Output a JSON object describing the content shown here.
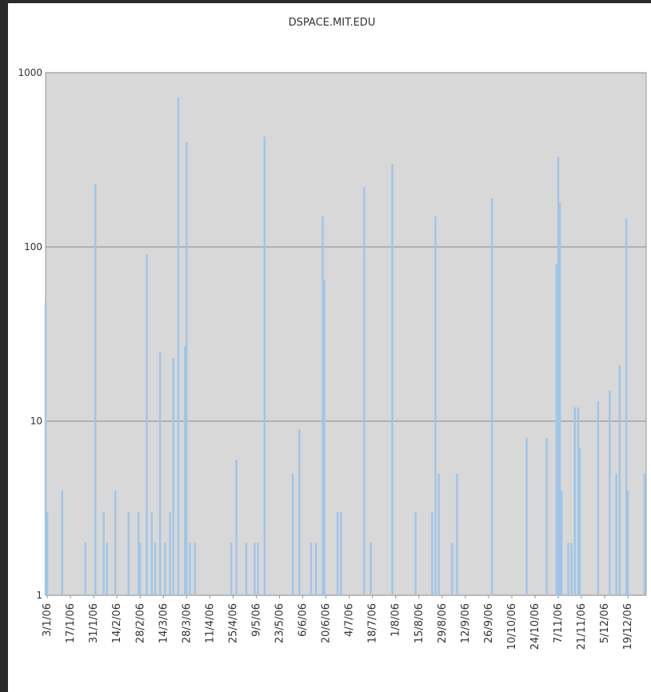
{
  "chart_data": {
    "type": "bar",
    "title": "DSPACE.MIT.EDU",
    "log": true,
    "grid": true,
    "color": "#9fc5e8",
    "xlim": [
      "2/1/06",
      "30/12/06"
    ],
    "xticks": [
      "3/1/06",
      "17/1/06",
      "31/1/06",
      "14/2/06",
      "28/2/06",
      "14/3/06",
      "28/3/06",
      "11/4/06",
      "25/4/06",
      "9/5/06",
      "23/5/06",
      "6/6/06",
      "20/6/06",
      "4/7/06",
      "18/7/06",
      "1/8/06",
      "15/8/06",
      "29/8/06",
      "12/9/06",
      "26/9/06",
      "10/10/06",
      "24/10/06",
      "7/11/06",
      "21/11/06",
      "5/12/06",
      "19/12/06"
    ],
    "ylim": [
      1,
      1000
    ],
    "yticks": [
      1,
      10,
      100,
      1000
    ],
    "x": [
      "2/1/06",
      "3/1/06",
      "12/1/06",
      "26/1/06",
      "1/2/06",
      "6/2/06",
      "8/2/06",
      "13/2/06",
      "21/2/06",
      "27/2/06",
      "28/2/06",
      "4/3/06",
      "7/3/06",
      "9/3/06",
      "12/3/06",
      "15/3/06",
      "18/3/06",
      "20/3/06",
      "23/3/06",
      "27/3/06",
      "28/3/06",
      "30/3/06",
      "2/4/06",
      "24/4/06",
      "27/4/06",
      "3/5/06",
      "8/5/06",
      "10/5/06",
      "14/5/06",
      "31/5/06",
      "4/6/06",
      "11/6/06",
      "14/6/06",
      "18/6/06",
      "19/6/06",
      "27/6/06",
      "29/6/06",
      "13/7/06",
      "17/7/06",
      "30/7/06",
      "13/8/06",
      "23/8/06",
      "25/8/06",
      "27/8/06",
      "4/9/06",
      "7/9/06",
      "28/9/06",
      "19/10/06",
      "31/10/06",
      "6/11/06",
      "7/11/06",
      "8/11/06",
      "9/11/06",
      "13/11/06",
      "15/11/06",
      "17/11/06",
      "19/11/06",
      "20/11/06",
      "1/12/06",
      "8/12/06",
      "12/12/06",
      "14/12/06",
      "18/12/06",
      "19/12/06",
      "29/12/06"
    ],
    "values": [
      48,
      3,
      4,
      2,
      230,
      3,
      2,
      4,
      3,
      3,
      2,
      90,
      3,
      2,
      25,
      2,
      3,
      23,
      720,
      27,
      400,
      2,
      2,
      2,
      6,
      2,
      2,
      2,
      430,
      5,
      9,
      2,
      2,
      150,
      65,
      3,
      3,
      220,
      2,
      300,
      3,
      3,
      150,
      5,
      2,
      5,
      190,
      8,
      8,
      80,
      330,
      180,
      4,
      2,
      2,
      12,
      12,
      7,
      13,
      15,
      5,
      21,
      145,
      4,
      5
    ]
  }
}
